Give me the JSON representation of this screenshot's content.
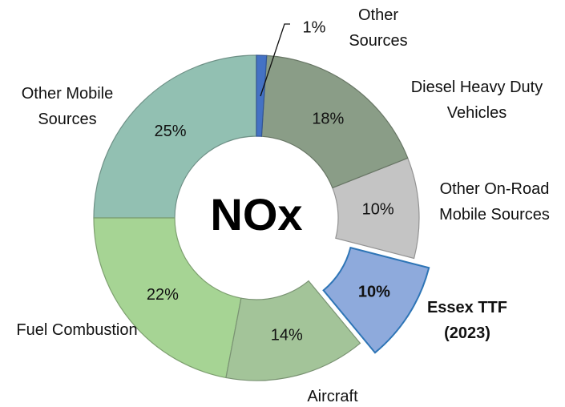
{
  "chart_data": {
    "type": "donut",
    "center_label": "NOx",
    "categories": [
      "Other Sources",
      "Diesel Heavy Duty Vehicles",
      "Other On-Road Mobile Sources",
      "Essex TTF (2023)",
      "Aircraft",
      "Fuel Combustion",
      "Other Mobile Sources"
    ],
    "values": [
      1,
      18,
      10,
      10,
      14,
      22,
      25
    ],
    "value_labels": [
      "1%",
      "18%",
      "10%",
      "10%",
      "14%",
      "22%",
      "25%"
    ],
    "colors": [
      "#4472c4",
      "#8a9d87",
      "#c4c4c4",
      "#8eaadc",
      "#a3c499",
      "#a6d494",
      "#92c0b2"
    ],
    "highlight": 3
  }
}
